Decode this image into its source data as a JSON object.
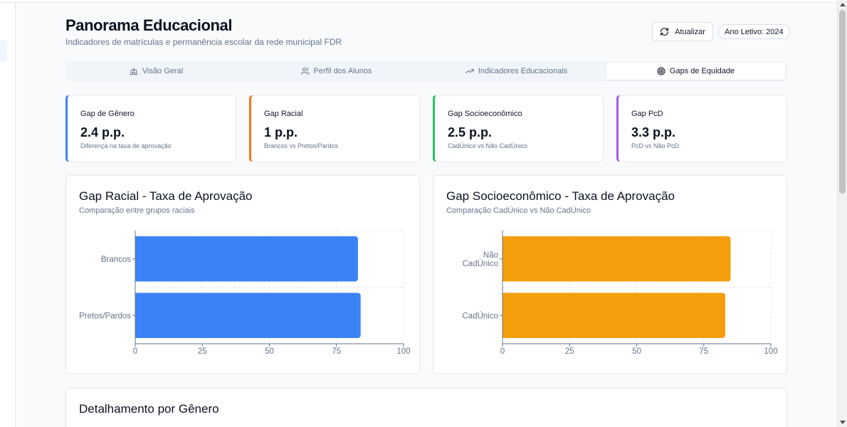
{
  "header": {
    "title": "Panorama Educacional",
    "subtitle": "Indicadores de matrículas e permanência escolar da rede municipal FDR",
    "refresh_label": "Atualizar",
    "year_badge": "Ano Letivo: 2024"
  },
  "tabs": [
    {
      "label": "Visão Geral",
      "icon": "school-icon",
      "active": false
    },
    {
      "label": "Perfil dos Alunos",
      "icon": "users-icon",
      "active": false
    },
    {
      "label": "Indicadores Educacionais",
      "icon": "trending-up-icon",
      "active": false
    },
    {
      "label": "Gaps de Equidade",
      "icon": "target-icon",
      "active": true
    }
  ],
  "kpis": [
    {
      "label": "Gap de Gênero",
      "value": "2.4 p.p.",
      "desc": "Diferença na taxa de aprovação",
      "color": "#3b82f6"
    },
    {
      "label": "Gap Racial",
      "value": "1 p.p.",
      "desc": "Brancos vs Pretos/Pardos",
      "color": "#f97316"
    },
    {
      "label": "Gap Socioeconômico",
      "value": "2.5 p.p.",
      "desc": "CadÚnico vs Não CadÚnico",
      "color": "#22c55e"
    },
    {
      "label": "Gap PcD",
      "value": "3.3 p.p.",
      "desc": "PcD vs Não PcD",
      "color": "#a855f7"
    }
  ],
  "cards": {
    "racial": {
      "title": "Gap Racial - Taxa de Aprovação",
      "subtitle": "Comparação entre grupos raciais"
    },
    "socio": {
      "title": "Gap Socioeconômico - Taxa de Aprovação",
      "subtitle": "Comparação CadÚnico vs Não CadÚnico"
    },
    "genero": {
      "title": "Detalhamento por Gênero"
    }
  },
  "chart_data": [
    {
      "type": "bar",
      "orientation": "horizontal",
      "title": "Gap Racial - Taxa de Aprovação",
      "categories": [
        "Brancos",
        "Pretos/Pardos"
      ],
      "values": [
        83,
        84
      ],
      "xlim": [
        0,
        100
      ],
      "xticks": [
        0,
        25,
        50,
        75,
        100
      ],
      "color": "#3b82f6",
      "grid": true
    },
    {
      "type": "bar",
      "orientation": "horizontal",
      "title": "Gap Socioeconômico - Taxa de Aprovação",
      "categories": [
        "Não CadÚnico",
        "CadÚnico"
      ],
      "values": [
        85,
        83
      ],
      "xlim": [
        0,
        100
      ],
      "xticks": [
        0,
        25,
        50,
        75,
        100
      ],
      "color": "#f59e0b",
      "grid": true
    }
  ]
}
